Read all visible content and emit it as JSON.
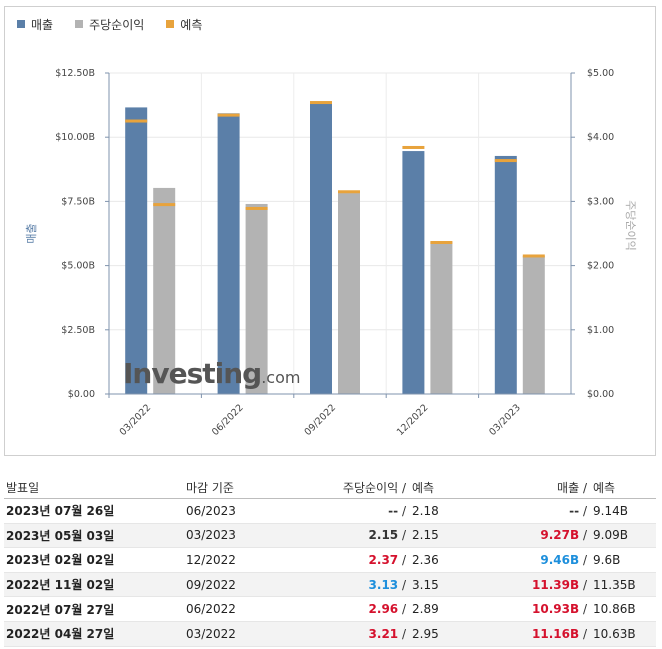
{
  "legend": {
    "revenue": {
      "label": "매출",
      "color": "#5b7fa8"
    },
    "eps": {
      "label": "주당순이익",
      "color": "#b3b3b3"
    },
    "forecast": {
      "label": "예측",
      "color": "#e8a33c"
    }
  },
  "chart_data": {
    "type": "bar",
    "categories": [
      "03/2022",
      "06/2022",
      "09/2022",
      "12/2022",
      "03/2023"
    ],
    "series": [
      {
        "name": "매출",
        "axis": "left",
        "values": [
          11.16,
          10.93,
          11.39,
          9.46,
          9.27
        ],
        "forecast": [
          10.63,
          10.86,
          11.35,
          9.6,
          9.09
        ]
      },
      {
        "name": "주당순이익",
        "axis": "right",
        "values": [
          3.21,
          2.96,
          3.13,
          2.37,
          2.15
        ],
        "forecast": [
          2.95,
          2.89,
          3.15,
          2.36,
          2.15
        ]
      }
    ],
    "y_left": {
      "label": "매출",
      "min": 0,
      "max": 12.5,
      "ticks": [
        "$0.00",
        "$2.50B",
        "$5.00B",
        "$7.50B",
        "$10.00B",
        "$12.50B"
      ]
    },
    "y_right": {
      "label": "주당순이익",
      "min": 0,
      "max": 5,
      "ticks": [
        "$0.00",
        "$1.00",
        "$2.00",
        "$3.00",
        "$4.00",
        "$5.00"
      ]
    }
  },
  "watermark": {
    "main": "Investing",
    "suffix": ".com"
  },
  "table": {
    "headers": {
      "date": "발표일",
      "period": "마감 기준",
      "eps": "주당순이익",
      "eps_forecast": "예측",
      "revenue": "매출",
      "revenue_forecast": "예측",
      "sep": "/"
    },
    "rows": [
      {
        "date": "2023년 07월 26일",
        "period": "06/2023",
        "eps": "--",
        "eps_forecast": "2.18",
        "revenue": "--",
        "revenue_forecast": "9.14B",
        "eps_class": "neutral",
        "rev_class": "neutral"
      },
      {
        "date": "2023년 05월 03일",
        "period": "03/2023",
        "eps": "2.15",
        "eps_forecast": "2.15",
        "revenue": "9.27B",
        "revenue_forecast": "9.09B",
        "eps_class": "neutral",
        "rev_class": "up"
      },
      {
        "date": "2023년 02월 02일",
        "period": "12/2022",
        "eps": "2.37",
        "eps_forecast": "2.36",
        "revenue": "9.46B",
        "revenue_forecast": "9.6B",
        "eps_class": "up",
        "rev_class": "down"
      },
      {
        "date": "2022년 11월 02일",
        "period": "09/2022",
        "eps": "3.13",
        "eps_forecast": "3.15",
        "revenue": "11.39B",
        "revenue_forecast": "11.35B",
        "eps_class": "down",
        "rev_class": "up"
      },
      {
        "date": "2022년 07월 27일",
        "period": "06/2022",
        "eps": "2.96",
        "eps_forecast": "2.89",
        "revenue": "10.93B",
        "revenue_forecast": "10.86B",
        "eps_class": "up",
        "rev_class": "up"
      },
      {
        "date": "2022년 04월 27일",
        "period": "03/2022",
        "eps": "3.21",
        "eps_forecast": "2.95",
        "revenue": "11.16B",
        "revenue_forecast": "10.63B",
        "eps_class": "up",
        "rev_class": "up"
      }
    ]
  }
}
